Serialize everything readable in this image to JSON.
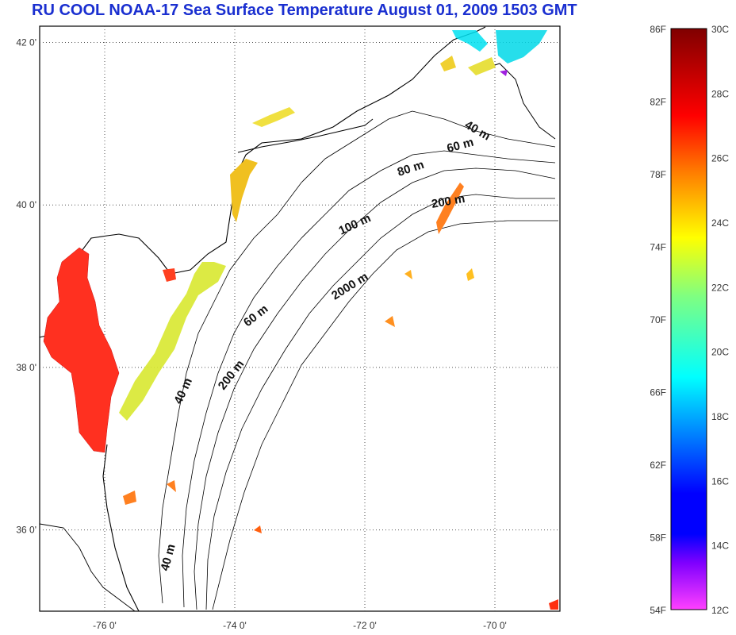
{
  "title": "RU COOL  NOAA-17 Sea Surface Temperature August 01, 2009 1503 GMT",
  "map": {
    "lat_ticks": [
      {
        "lat": 42,
        "label": "42 0'"
      },
      {
        "lat": 40,
        "label": "40 0'"
      },
      {
        "lat": 38,
        "label": "38 0'"
      },
      {
        "lat": 36,
        "label": "36 0'"
      }
    ],
    "lon_ticks": [
      {
        "lon": -76,
        "label": "-76 0'"
      },
      {
        "lon": -74,
        "label": "-74 0'"
      },
      {
        "lon": -72,
        "label": "-72 0'"
      },
      {
        "lon": -70,
        "label": "-70 0'"
      }
    ],
    "lat_range": [
      35,
      42.2
    ],
    "lon_range": [
      -77,
      -69
    ],
    "grid": "dotted",
    "isobath_labels": [
      "40 m",
      "60 m",
      "80 m",
      "200 m",
      "100 m",
      "2000 m",
      "60 m",
      "200 m",
      "40 m",
      "40 m"
    ]
  },
  "colorbar": {
    "fahrenheit_labels": [
      "86F",
      "82F",
      "78F",
      "74F",
      "70F",
      "66F",
      "62F",
      "58F",
      "54F"
    ],
    "celsius_labels": [
      "30C",
      "28C",
      "26C",
      "24C",
      "22C",
      "20C",
      "18C",
      "16C",
      "14C",
      "12C"
    ],
    "colors": [
      "#800000",
      "#ff0000",
      "#ff8000",
      "#ffff00",
      "#80ff80",
      "#00ffff",
      "#0080ff",
      "#0000ff",
      "#8000ff",
      "#ff40ff"
    ]
  }
}
